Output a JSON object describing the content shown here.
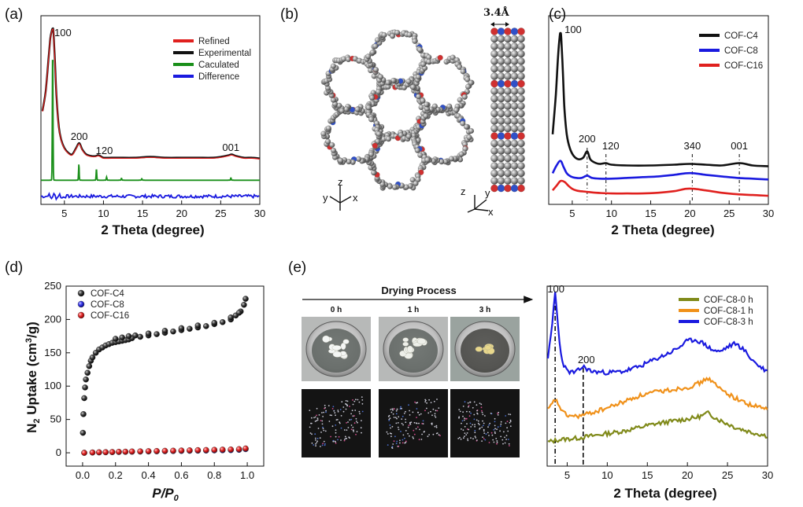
{
  "chart_data": [
    {
      "panel": "(a)",
      "type": "line",
      "xlabel": "2 Theta  (degree)",
      "xlim": [
        2,
        30
      ],
      "xticks": [
        5,
        10,
        15,
        20,
        25,
        30
      ],
      "y_ticks_shown": false,
      "legend": {
        "position": "top-right",
        "entries": [
          {
            "name": "Refined",
            "color": "#e0201e"
          },
          {
            "name": "Experimental",
            "color": "#111111"
          },
          {
            "name": "Caculated",
            "color": "#1a8f1a"
          },
          {
            "name": "Difference",
            "color": "#1a1adf"
          }
        ]
      },
      "annotations": [
        {
          "text": "100",
          "x": 3.5
        },
        {
          "text": "200",
          "x": 6.9
        },
        {
          "text": "120",
          "x": 9.3
        },
        {
          "text": "001",
          "x": 26.3
        }
      ],
      "series": [
        {
          "name": "Experimental",
          "color": "#111111",
          "x": [
            2.2,
            2.6,
            3.0,
            3.2,
            3.4,
            3.5,
            3.6,
            3.8,
            4.0,
            4.3,
            4.6,
            5.0,
            5.5,
            6.0,
            6.5,
            6.9,
            7.3,
            7.8,
            8.5,
            9.0,
            9.3,
            9.6,
            10,
            11,
            12,
            14,
            16,
            18,
            20,
            22,
            24,
            25,
            26,
            26.4,
            27,
            28,
            29,
            30
          ],
          "y": [
            0.58,
            0.7,
            0.92,
            1.03,
            1.08,
            1.09,
            1.07,
            0.88,
            0.66,
            0.48,
            0.4,
            0.35,
            0.32,
            0.31,
            0.35,
            0.38,
            0.34,
            0.31,
            0.3,
            0.3,
            0.305,
            0.3,
            0.29,
            0.29,
            0.29,
            0.29,
            0.295,
            0.29,
            0.29,
            0.29,
            0.29,
            0.295,
            0.305,
            0.31,
            0.3,
            0.29,
            0.29,
            0.285
          ]
        },
        {
          "name": "Refined",
          "color": "#e0201e",
          "x": [
            2.2,
            2.6,
            3.0,
            3.2,
            3.4,
            3.5,
            3.6,
            3.8,
            4.0,
            4.3,
            4.6,
            5.0,
            5.5,
            6.0,
            6.5,
            6.9,
            7.3,
            7.8,
            8.5,
            9.0,
            9.3,
            9.6,
            10,
            11,
            12,
            14,
            16,
            18,
            20,
            22,
            24,
            25,
            26,
            26.4,
            27,
            28,
            29,
            30
          ],
          "y": [
            0.58,
            0.7,
            0.92,
            1.03,
            1.08,
            1.09,
            1.07,
            0.88,
            0.66,
            0.48,
            0.4,
            0.35,
            0.32,
            0.31,
            0.35,
            0.38,
            0.34,
            0.31,
            0.3,
            0.3,
            0.305,
            0.3,
            0.29,
            0.29,
            0.29,
            0.29,
            0.295,
            0.29,
            0.29,
            0.29,
            0.29,
            0.295,
            0.305,
            0.31,
            0.3,
            0.29,
            0.29,
            0.285
          ]
        },
        {
          "name": "Caculated",
          "color": "#1a8f1a",
          "baseline": 0.15,
          "peaks": [
            {
              "x": 3.5,
              "h": 0.83
            },
            {
              "x": 6.85,
              "h": 0.1
            },
            {
              "x": 9.1,
              "h": 0.07
            },
            {
              "x": 10.4,
              "h": 0.02
            },
            {
              "x": 12.3,
              "h": 0.012
            },
            {
              "x": 14.9,
              "h": 0.01
            },
            {
              "x": 26.3,
              "h": 0.015
            }
          ]
        },
        {
          "name": "Difference",
          "color": "#1a1adf",
          "baseline": 0.05,
          "noise": 0.01
        }
      ]
    },
    {
      "panel": "(c)",
      "type": "line",
      "xlabel": "2 Theta  (degree)",
      "xlim": [
        2,
        30
      ],
      "xticks": [
        5,
        10,
        15,
        20,
        25,
        30
      ],
      "y_ticks_shown": false,
      "legend": {
        "position": "top-right",
        "entries": [
          {
            "name": "COF-C4",
            "color": "#111111"
          },
          {
            "name": "COF-C8",
            "color": "#1a1adf"
          },
          {
            "name": "COF-C16",
            "color": "#e0201e"
          }
        ]
      },
      "annotations": [
        {
          "text": "100",
          "x": 3.5
        },
        {
          "text": "200",
          "x": 6.9
        },
        {
          "text": "120",
          "x": 9.3
        },
        {
          "text": "340",
          "x": 20.3
        },
        {
          "text": "001",
          "x": 26.3
        }
      ],
      "reference_lines_x": [
        6.9,
        9.3,
        20.3,
        26.3
      ],
      "series": [
        {
          "name": "COF-C4",
          "color": "#111111",
          "x": [
            2.5,
            2.9,
            3.2,
            3.4,
            3.5,
            3.6,
            3.8,
            4.0,
            4.3,
            4.7,
            5.2,
            5.8,
            6.4,
            6.9,
            7.3,
            7.8,
            8.5,
            9.3,
            10,
            12,
            15,
            18,
            20,
            22,
            24,
            26.3,
            28,
            30
          ],
          "y": [
            0.45,
            0.7,
            0.96,
            1.08,
            1.1,
            1.07,
            0.86,
            0.62,
            0.45,
            0.36,
            0.31,
            0.29,
            0.3,
            0.34,
            0.29,
            0.27,
            0.26,
            0.265,
            0.255,
            0.25,
            0.25,
            0.255,
            0.26,
            0.255,
            0.25,
            0.265,
            0.25,
            0.245
          ]
        },
        {
          "name": "COF-C8",
          "color": "#1a1adf",
          "x": [
            2.5,
            3.0,
            3.5,
            3.9,
            4.3,
            4.8,
            5.5,
            6.2,
            6.9,
            7.5,
            8.5,
            10,
            12,
            14,
            16,
            18,
            19.5,
            20.5,
            22,
            24,
            26,
            28,
            30
          ],
          "y": [
            0.2,
            0.25,
            0.28,
            0.24,
            0.2,
            0.18,
            0.17,
            0.17,
            0.185,
            0.17,
            0.165,
            0.165,
            0.17,
            0.175,
            0.18,
            0.19,
            0.2,
            0.2,
            0.19,
            0.18,
            0.17,
            0.165,
            0.16
          ]
        },
        {
          "name": "COF-C16",
          "color": "#e0201e",
          "x": [
            2.5,
            3.0,
            3.5,
            4.0,
            4.5,
            5.0,
            5.5,
            6.0,
            7.0,
            8,
            10,
            12,
            14,
            16,
            18,
            19.5,
            20.5,
            22,
            24,
            26,
            28,
            30
          ],
          "y": [
            0.09,
            0.12,
            0.15,
            0.145,
            0.12,
            0.1,
            0.09,
            0.085,
            0.08,
            0.075,
            0.07,
            0.07,
            0.07,
            0.075,
            0.085,
            0.1,
            0.1,
            0.09,
            0.075,
            0.065,
            0.06,
            0.055
          ]
        }
      ]
    },
    {
      "panel": "(d)",
      "type": "scatter",
      "xlabel": "P/P0",
      "ylabel": "N2 Uptake (cm3/g)",
      "xlim": [
        -0.1,
        1.1
      ],
      "ylim": [
        -20,
        250
      ],
      "xticks": [
        0.0,
        0.2,
        0.4,
        0.6,
        0.8,
        1.0
      ],
      "yticks": [
        0,
        50,
        100,
        150,
        200,
        250
      ],
      "legend": {
        "position": "top-left",
        "entries": [
          {
            "name": "COF-C4",
            "color": "#111111"
          },
          {
            "name": "COF-C8",
            "color": "#1a1adf"
          },
          {
            "name": "COF-C16",
            "color": "#e0201e"
          }
        ]
      },
      "series": [
        {
          "name": "COF-C4",
          "color": "#111111",
          "x": [
            0.002,
            0.005,
            0.01,
            0.015,
            0.02,
            0.03,
            0.04,
            0.05,
            0.06,
            0.08,
            0.1,
            0.12,
            0.14,
            0.16,
            0.18,
            0.2,
            0.22,
            0.24,
            0.26,
            0.28,
            0.3,
            0.35,
            0.4,
            0.45,
            0.5,
            0.55,
            0.6,
            0.65,
            0.7,
            0.75,
            0.8,
            0.85,
            0.9,
            0.93,
            0.96,
            0.98,
            0.99,
            0.2,
            0.24,
            0.28,
            0.32,
            0.4,
            0.5,
            0.6,
            0.7,
            0.8,
            0.9,
            0.95
          ],
          "y": [
            30,
            58,
            82,
            98,
            110,
            120,
            130,
            138,
            143,
            150,
            155,
            158,
            161,
            163,
            165,
            166,
            167,
            168,
            169,
            170,
            172,
            174,
            176,
            178,
            180,
            182,
            184,
            186,
            188,
            190,
            193,
            196,
            200,
            206,
            212,
            222,
            231,
            171,
            173,
            175,
            176,
            179,
            183,
            187,
            191,
            195,
            203,
            210
          ]
        },
        {
          "name": "COF-C8",
          "color": "#1a1adf",
          "x": [
            0.01,
            0.06,
            0.1,
            0.14,
            0.18,
            0.22,
            0.26,
            0.3,
            0.35,
            0.4,
            0.45,
            0.5,
            0.55,
            0.6,
            0.65,
            0.7,
            0.75,
            0.8,
            0.85,
            0.9,
            0.95,
            0.99
          ],
          "y": [
            0,
            0.4,
            0.6,
            0.8,
            1,
            1.2,
            1.4,
            1.6,
            1.8,
            2,
            2.2,
            2.4,
            2.6,
            2.8,
            3,
            3.2,
            3.4,
            3.6,
            3.8,
            4,
            4.5,
            5.5
          ]
        },
        {
          "name": "COF-C16",
          "color": "#e0201e",
          "x": [
            0.01,
            0.06,
            0.1,
            0.14,
            0.18,
            0.22,
            0.26,
            0.3,
            0.35,
            0.4,
            0.45,
            0.5,
            0.55,
            0.6,
            0.65,
            0.7,
            0.75,
            0.8,
            0.85,
            0.9,
            0.95,
            0.99
          ],
          "y": [
            0,
            0.5,
            0.8,
            1,
            1.2,
            1.5,
            1.7,
            2,
            2.2,
            2.5,
            2.7,
            3,
            3.2,
            3.5,
            3.7,
            4,
            4.2,
            4.5,
            4.8,
            5,
            5.5,
            6.5
          ]
        }
      ]
    },
    {
      "panel": "(e)",
      "type": "line",
      "xlabel": "2 Theta  (degree)",
      "xlim": [
        2.5,
        30
      ],
      "xticks": [
        5,
        10,
        15,
        20,
        25,
        30
      ],
      "y_ticks_shown": false,
      "legend": {
        "position": "top-right",
        "entries": [
          {
            "name": "COF-C8-0 h",
            "color": "#808a1a"
          },
          {
            "name": "COF-C8-1 h",
            "color": "#f0911a"
          },
          {
            "name": "COF-C8-3 h",
            "color": "#1a1adf"
          }
        ]
      },
      "annotations": [
        {
          "text": "100",
          "x": 3.5
        },
        {
          "text": "200",
          "x": 7.0
        }
      ],
      "reference_lines_x": [
        3.5,
        7.0
      ],
      "series": [
        {
          "name": "COF-C8-0 h",
          "color": "#808a1a",
          "x": [
            2.6,
            4,
            6,
            8,
            10,
            12,
            14,
            16,
            18,
            20,
            21,
            22,
            22.5,
            23,
            24,
            26,
            28,
            30
          ],
          "y": [
            0.12,
            0.14,
            0.15,
            0.17,
            0.19,
            0.21,
            0.24,
            0.27,
            0.29,
            0.31,
            0.32,
            0.34,
            0.36,
            0.34,
            0.3,
            0.24,
            0.2,
            0.17
          ]
        },
        {
          "name": "COF-C8-1 h",
          "color": "#f0911a",
          "x": [
            2.6,
            3.0,
            3.5,
            4.0,
            4.5,
            5,
            6,
            7,
            8,
            10,
            12,
            14,
            16,
            18,
            20,
            21,
            22,
            22.5,
            23,
            24,
            26,
            28,
            30
          ],
          "y": [
            0.38,
            0.42,
            0.47,
            0.42,
            0.36,
            0.34,
            0.33,
            0.34,
            0.36,
            0.4,
            0.45,
            0.5,
            0.53,
            0.55,
            0.57,
            0.59,
            0.62,
            0.65,
            0.62,
            0.56,
            0.48,
            0.42,
            0.39
          ]
        },
        {
          "name": "COF-C8-3 h",
          "color": "#1a1adf",
          "x": [
            2.6,
            2.9,
            3.2,
            3.4,
            3.5,
            3.7,
            4.0,
            4.4,
            5,
            6,
            7,
            8,
            10,
            12,
            14,
            16,
            18,
            19,
            20,
            21,
            22,
            23,
            24,
            25,
            26,
            27,
            28,
            29,
            30
          ],
          "y": [
            0.82,
            0.95,
            1.12,
            1.3,
            1.35,
            1.2,
            0.96,
            0.78,
            0.7,
            0.69,
            0.74,
            0.7,
            0.69,
            0.7,
            0.74,
            0.8,
            0.86,
            0.9,
            0.95,
            0.96,
            0.93,
            0.88,
            0.86,
            0.9,
            0.93,
            0.88,
            0.8,
            0.74,
            0.7
          ]
        }
      ]
    }
  ],
  "panels": {
    "a": {
      "label": "(a)"
    },
    "b": {
      "label": "(b)",
      "spacing_label": "3.4Å",
      "axis_left": {
        "z": "z",
        "y": "y",
        "x": "x"
      },
      "axis_right": {
        "z": "z",
        "y": "y",
        "x": "x"
      }
    },
    "c": {
      "label": "(c)"
    },
    "d": {
      "label": "(d)",
      "ylabel_main": "N",
      "ylabel_sub": "2",
      "ylabel_rest": " Uptake  (cm",
      "ylabel_sup": "3",
      "ylabel_end": "/g)",
      "xlabel_main": "P/P",
      "xlabel_sub": "0"
    },
    "e": {
      "label": "(e)",
      "drying_title": "Drying Process",
      "time_labels": [
        "0 h",
        "1 h",
        "3 h"
      ]
    }
  },
  "colors": {
    "black": "#111111",
    "red": "#e0201e",
    "blue": "#1a1adf",
    "green": "#1a8f1a",
    "olive": "#808a1a",
    "orange": "#f0911a"
  }
}
